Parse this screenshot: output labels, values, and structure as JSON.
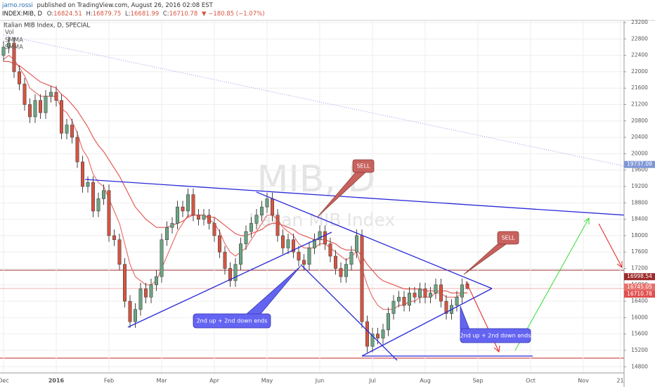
{
  "header": {
    "author": "jarno.rossi",
    "published": "published on TradingView.com, August 26, 2016 02:08 EST"
  },
  "chart_data": {
    "type": "candlestick",
    "symbol": "INDEX:MIB, D",
    "title": "Italian MIB Index, D, SPECIAL",
    "watermark": "MIB, D",
    "watermark_subtitle": "Italian MIB Index",
    "volume_label": "Vol",
    "change_label": "▼ −180.85 (−1.07%)",
    "ohlc_labels": {
      "open": "O:",
      "high": "H:",
      "low": "L:",
      "close": "C:"
    },
    "up_color": "#6ba583",
    "down_color": "#d75442",
    "grid": true,
    "categories": [
      "Dec",
      null,
      null,
      null,
      null,
      null,
      null,
      null,
      null,
      null,
      "2016",
      null,
      null,
      null,
      null,
      null,
      null,
      null,
      null,
      null,
      "Feb",
      null,
      null,
      null,
      null,
      null,
      null,
      null,
      null,
      null,
      "Mar",
      null,
      null,
      null,
      null,
      null,
      null,
      null,
      null,
      null,
      "Apr",
      null,
      null,
      null,
      null,
      null,
      null,
      null,
      null,
      null,
      "May",
      null,
      null,
      null,
      null,
      null,
      null,
      null,
      null,
      null,
      "Jun",
      null,
      null,
      null,
      null,
      null,
      null,
      null,
      null,
      null,
      "Jul",
      null,
      null,
      null,
      null,
      null,
      null,
      null,
      null,
      null,
      "Aug",
      null,
      null,
      null,
      null,
      null,
      null,
      null,
      null,
      null,
      "Sep",
      null,
      null,
      null,
      null,
      null,
      null,
      null,
      null,
      null,
      "Oct",
      null,
      null,
      null,
      null,
      null,
      null,
      null,
      null,
      null,
      "Nov",
      null,
      null,
      null,
      null,
      null,
      null,
      "21"
    ],
    "open": [
      22400,
      22600,
      22700,
      22000,
      21700,
      21200,
      20900,
      21300,
      21000,
      21400,
      21500,
      21300,
      20500,
      20700,
      20400,
      19800,
      19200,
      19300,
      18600,
      18900,
      19100,
      18000,
      17900,
      17300,
      16400,
      15900,
      16200,
      16700,
      16500,
      16800,
      17000,
      17900,
      18200,
      18300,
      18700,
      18600,
      19000,
      18500,
      18400,
      18500,
      18300,
      18000,
      17600,
      17200,
      16900,
      17300,
      17800,
      18100,
      18300,
      18500,
      18700,
      18900,
      18500,
      18000,
      17700,
      17900,
      17600,
      17400,
      17300,
      17700,
      17900,
      18100,
      17800,
      17500,
      17200,
      17000,
      17300,
      17600,
      18000,
      15900,
      15300,
      15600,
      15500,
      15700,
      16100,
      16400,
      16500,
      16300,
      16600,
      16500,
      16700,
      16500,
      16600,
      16800,
      16400,
      16100,
      16300,
      16500,
      16824.51,
      null,
      null,
      null,
      null,
      null,
      null,
      null,
      null,
      null,
      null,
      null,
      null,
      null,
      null,
      null,
      null,
      null,
      null,
      null,
      null,
      null,
      null,
      null,
      null,
      null,
      null,
      null,
      null,
      null
    ],
    "high": [
      22750,
      22850,
      22850,
      22150,
      21850,
      21350,
      21450,
      21450,
      21550,
      21650,
      21650,
      21450,
      20850,
      20850,
      20550,
      19950,
      19450,
      19450,
      19050,
      19250,
      19250,
      18150,
      18050,
      17450,
      16550,
      16350,
      16850,
      16850,
      16950,
      17150,
      18050,
      18350,
      18450,
      18850,
      18850,
      19150,
      19150,
      18650,
      18650,
      18650,
      18450,
      18150,
      17750,
      17350,
      17450,
      17950,
      18250,
      18450,
      18650,
      18850,
      19050,
      19050,
      18650,
      18150,
      18050,
      18050,
      17750,
      17550,
      17850,
      18050,
      18250,
      18250,
      17950,
      17650,
      17350,
      17450,
      17750,
      18150,
      18150,
      16050,
      15750,
      15750,
      15850,
      16250,
      16550,
      16650,
      16650,
      16750,
      16750,
      16850,
      16850,
      16750,
      16950,
      16950,
      16550,
      16450,
      16650,
      16950,
      16879.75,
      null,
      null,
      null,
      null,
      null,
      null,
      null,
      null,
      null,
      null,
      null,
      null,
      null,
      null,
      null,
      null,
      null,
      null,
      null,
      null,
      null,
      null,
      null,
      null,
      null,
      null,
      null,
      null,
      null
    ],
    "low": [
      22250,
      22450,
      21850,
      21550,
      21050,
      20750,
      20750,
      20850,
      20850,
      21250,
      21150,
      20350,
      20350,
      20250,
      19650,
      19050,
      19050,
      18450,
      18450,
      18750,
      17850,
      17750,
      17150,
      16250,
      15750,
      15750,
      16050,
      16350,
      16350,
      16650,
      16850,
      17750,
      18050,
      18150,
      18450,
      18450,
      18350,
      18250,
      18250,
      18150,
      17850,
      17450,
      17050,
      16750,
      16750,
      17150,
      17650,
      17950,
      18150,
      18350,
      18550,
      18350,
      17850,
      17550,
      17550,
      17450,
      17250,
      17150,
      17150,
      17550,
      17750,
      17650,
      17350,
      17050,
      16850,
      16850,
      17150,
      17450,
      15750,
      15150,
      15150,
      15350,
      15350,
      15550,
      15950,
      16250,
      16150,
      16150,
      16350,
      16350,
      16350,
      16350,
      16450,
      16250,
      15950,
      15950,
      16150,
      16350,
      16681.99,
      null,
      null,
      null,
      null,
      null,
      null,
      null,
      null,
      null,
      null,
      null,
      null,
      null,
      null,
      null,
      null,
      null,
      null,
      null,
      null,
      null,
      null,
      null,
      null,
      null,
      null,
      null,
      null,
      null
    ],
    "close": [
      22600,
      22700,
      22000,
      21700,
      21200,
      20900,
      21300,
      21000,
      21400,
      21500,
      21300,
      20500,
      20700,
      20400,
      19800,
      19200,
      19300,
      18600,
      18900,
      19100,
      18000,
      17900,
      17300,
      16400,
      15900,
      16200,
      16700,
      16500,
      16800,
      17000,
      17900,
      18200,
      18300,
      18700,
      18600,
      19000,
      18500,
      18400,
      18500,
      18300,
      18000,
      17600,
      17200,
      16900,
      17300,
      17800,
      18100,
      18300,
      18500,
      18700,
      18900,
      18500,
      18000,
      17700,
      17900,
      17600,
      17400,
      17300,
      17700,
      17900,
      18100,
      17800,
      17500,
      17200,
      17000,
      17300,
      17600,
      18000,
      15900,
      15300,
      15600,
      15500,
      15700,
      16100,
      16400,
      16500,
      16300,
      16600,
      16500,
      16700,
      16500,
      16600,
      16800,
      16400,
      16100,
      16300,
      16500,
      16800,
      16710.78,
      null,
      null,
      null,
      null,
      null,
      null,
      null,
      null,
      null,
      null,
      null,
      null,
      null,
      null,
      null,
      null,
      null,
      null,
      null,
      null,
      null,
      null,
      null,
      null,
      null,
      null,
      null,
      null,
      null
    ],
    "series": [
      {
        "name": "SMMA",
        "color": "#e8716d",
        "values": [
          22300,
          22400,
          22300,
          22100,
          21900,
          21600,
          21500,
          21400,
          21400,
          21400,
          21400,
          21100,
          21000,
          20800,
          20500,
          20100,
          19900,
          19500,
          19300,
          19200,
          18900,
          18600,
          18300,
          17800,
          17300,
          17000,
          16900,
          16800,
          16800,
          16900,
          17200,
          17500,
          17800,
          18100,
          18300,
          18500,
          18500,
          18500,
          18500,
          18400,
          18300,
          18100,
          17800,
          17600,
          17500,
          17600,
          17700,
          17900,
          18100,
          18300,
          18500,
          18500,
          18400,
          18200,
          18100,
          18000,
          17800,
          17700,
          17700,
          17700,
          17800,
          17800,
          17700,
          17600,
          17500,
          17400,
          17500,
          17600,
          17200,
          16800,
          16500,
          16300,
          16200,
          16200,
          16200,
          16300,
          16300,
          16400,
          16400,
          16500,
          16500,
          16500,
          16600,
          16600,
          16500,
          16500,
          16500,
          16600,
          16600,
          null,
          null,
          null,
          null,
          null,
          null,
          null,
          null,
          null,
          null,
          null,
          null,
          null,
          null,
          null,
          null,
          null,
          null,
          null,
          null,
          null,
          null,
          null,
          null,
          null,
          null,
          null,
          null,
          null
        ]
      },
      {
        "name": "SMMA",
        "color": "#e25a55",
        "values": [
          22250,
          22250,
          22200,
          22150,
          22050,
          21950,
          21850,
          21750,
          21700,
          21650,
          21600,
          21450,
          21350,
          21200,
          21050,
          20850,
          20650,
          20400,
          20200,
          20050,
          19850,
          19650,
          19450,
          19200,
          18950,
          18700,
          18550,
          18400,
          18300,
          18200,
          18200,
          18200,
          18250,
          18300,
          18350,
          18450,
          18500,
          18500,
          18500,
          18450,
          18450,
          18350,
          18250,
          18150,
          18050,
          18000,
          18000,
          18050,
          18100,
          18150,
          18250,
          18300,
          18300,
          18250,
          18200,
          18150,
          18050,
          18000,
          17950,
          17900,
          17900,
          17900,
          17850,
          17800,
          17700,
          17650,
          17650,
          17650,
          17500,
          17300,
          17150,
          17000,
          16900,
          16850,
          16800,
          16750,
          16700,
          16700,
          16700,
          16700,
          16650,
          16650,
          16650,
          16650,
          16650,
          16600,
          16600,
          16600,
          16600,
          null,
          null,
          null,
          null,
          null,
          null,
          null,
          null,
          null,
          null,
          null,
          null,
          null,
          null,
          null,
          null,
          null,
          null,
          null,
          null,
          null,
          null,
          null,
          null,
          null,
          null,
          null,
          null,
          null
        ]
      }
    ],
    "ylim": [
      14650,
      23235
    ],
    "yticks": [
      14800,
      15200,
      15600,
      16000,
      16400,
      16800,
      17200,
      17600,
      18000,
      18400,
      18800,
      19200,
      19600,
      20000,
      20400,
      20800,
      21200,
      21600,
      22000,
      22400,
      22800,
      23200
    ],
    "price_labels": [
      {
        "value": 19737.09,
        "color": "#7f96d6"
      },
      {
        "value": 16998.54,
        "color": "#9c2b2b"
      },
      {
        "value": 16745.05,
        "color": "#e8716d"
      },
      {
        "value": 16710.78,
        "color": "#e05050"
      }
    ],
    "annotations": [
      "SELL",
      "SELL",
      "2nd up + 2nd down ends",
      "2nd up + 2nd down ends"
    ]
  }
}
